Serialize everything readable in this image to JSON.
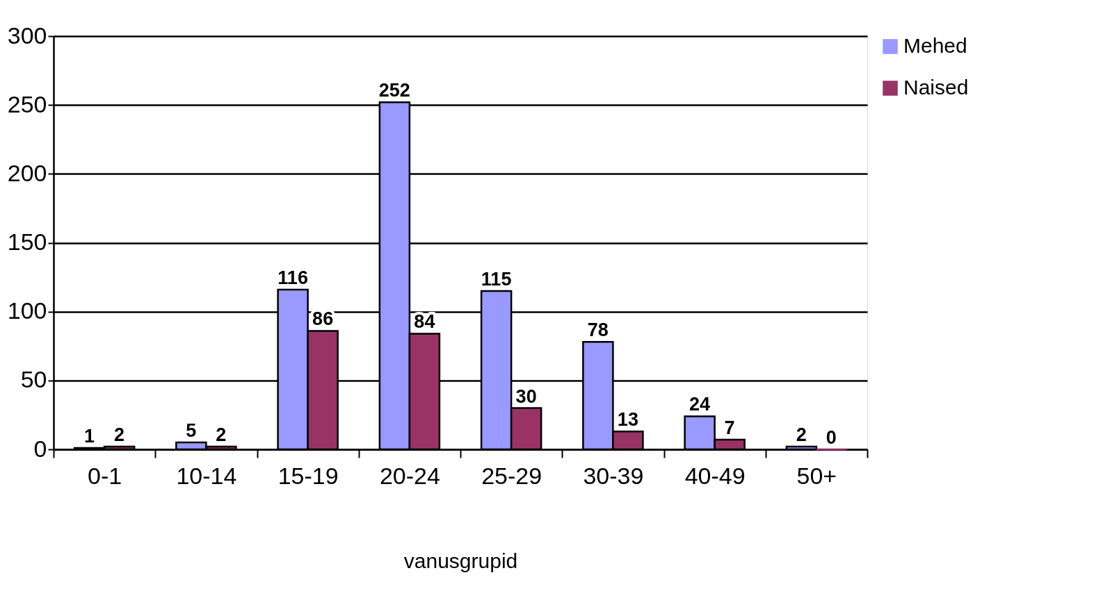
{
  "chart_data": {
    "type": "bar",
    "xlabel": "vanusgrupid",
    "categories": [
      "0-1",
      "10-14",
      "15-19",
      "20-24",
      "25-29",
      "30-39",
      "40-49",
      "50+"
    ],
    "series": [
      {
        "name": "Mehed",
        "color": "#9999ff",
        "values": [
          1,
          5,
          116,
          252,
          115,
          78,
          24,
          2
        ]
      },
      {
        "name": "Naised",
        "color": "#993366",
        "values": [
          2,
          2,
          86,
          84,
          30,
          13,
          7,
          0
        ]
      }
    ],
    "ylim": [
      0,
      300
    ],
    "yticks": [
      0,
      50,
      100,
      150,
      200,
      250,
      300
    ],
    "grid": "y",
    "legend": "right",
    "data_labels": true
  }
}
